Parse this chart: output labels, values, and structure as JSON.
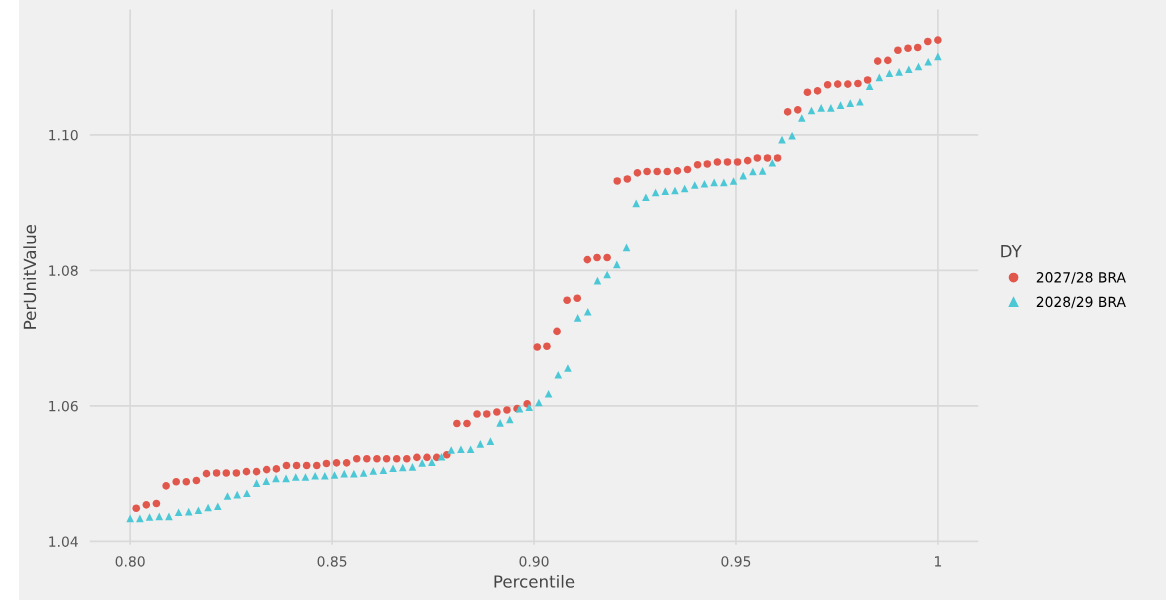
{
  "chart_data": {
    "type": "scatter",
    "xlabel": "Percentile",
    "ylabel": "PerUnitValue",
    "legend_title": "DY",
    "legend": "right",
    "grid": true,
    "xlim": [
      0.79,
      1.01
    ],
    "xticks": [
      {
        "value": 0.8,
        "label": "0.80"
      },
      0.85,
      {
        "value": 0.9,
        "label": "0.90"
      },
      0.95,
      1
    ],
    "ylim": [
      1.0395,
      1.1185
    ],
    "yticks": [
      {
        "value": 1.04,
        "label": "1.04"
      },
      {
        "value": 1.06,
        "label": "1.06"
      },
      {
        "value": 1.08,
        "label": "1.08"
      },
      {
        "value": 1.1,
        "label": "1.10"
      }
    ],
    "series": [
      {
        "name": "2027/28 BRA",
        "color": "#e2574c",
        "marker": "circle",
        "x": [
          0.8015,
          0.804,
          0.8065,
          0.8089,
          0.8114,
          0.8139,
          0.8164,
          0.8189,
          0.8214,
          0.8238,
          0.8263,
          0.8288,
          0.8313,
          0.8338,
          0.8362,
          0.8387,
          0.8412,
          0.8437,
          0.8462,
          0.8486,
          0.8511,
          0.8536,
          0.8561,
          0.8586,
          0.8611,
          0.8635,
          0.866,
          0.8685,
          0.871,
          0.8735,
          0.8759,
          0.8784,
          0.8809,
          0.8834,
          0.8859,
          0.8883,
          0.8908,
          0.8933,
          0.8958,
          0.8983,
          0.9008,
          0.9032,
          0.9057,
          0.9082,
          0.9107,
          0.9132,
          0.9156,
          0.9181,
          0.9206,
          0.9231,
          0.9256,
          0.928,
          0.9305,
          0.933,
          0.9355,
          0.938,
          0.9405,
          0.9429,
          0.9454,
          0.9479,
          0.9504,
          0.9529,
          0.9553,
          0.9578,
          0.9603,
          0.9628,
          0.9653,
          0.9677,
          0.9702,
          0.9727,
          0.9752,
          0.9777,
          0.9802,
          0.9826,
          0.9851,
          0.9876,
          0.9901,
          0.9926,
          0.995,
          0.9975,
          1.0
        ],
        "values": [
          1.0449,
          1.0454,
          1.0456,
          1.0482,
          1.0488,
          1.0488,
          1.049,
          1.05,
          1.0501,
          1.0501,
          1.0501,
          1.0503,
          1.0503,
          1.0506,
          1.0507,
          1.0512,
          1.0512,
          1.0512,
          1.0512,
          1.0515,
          1.0516,
          1.0516,
          1.0522,
          1.0522,
          1.0522,
          1.0522,
          1.0522,
          1.0522,
          1.0524,
          1.0524,
          1.0524,
          1.0528,
          1.0574,
          1.0574,
          1.0588,
          1.0588,
          1.0591,
          1.0594,
          1.0596,
          1.0603,
          1.0687,
          1.0688,
          1.071,
          1.0756,
          1.0759,
          1.0816,
          1.0819,
          1.0819,
          1.0932,
          1.0935,
          1.0944,
          1.0946,
          1.0946,
          1.0946,
          1.0947,
          1.0949,
          1.0956,
          1.0957,
          1.096,
          1.096,
          1.096,
          1.0962,
          1.0966,
          1.0966,
          1.0966,
          1.1034,
          1.1037,
          1.1063,
          1.1065,
          1.1074,
          1.1075,
          1.1075,
          1.1076,
          1.1081,
          1.1109,
          1.111,
          1.1125,
          1.1128,
          1.1129,
          1.1138,
          1.114
        ]
      },
      {
        "name": "2028/29 BRA",
        "color": "#4cc7d6",
        "marker": "triangle",
        "x": [
          0.8,
          0.8024,
          0.8048,
          0.8072,
          0.8096,
          0.812,
          0.8145,
          0.8169,
          0.8193,
          0.8217,
          0.8241,
          0.8265,
          0.8289,
          0.8313,
          0.8337,
          0.8361,
          0.8386,
          0.841,
          0.8434,
          0.8458,
          0.8482,
          0.8506,
          0.853,
          0.8554,
          0.8578,
          0.8602,
          0.8627,
          0.8651,
          0.8675,
          0.8699,
          0.8723,
          0.8747,
          0.8771,
          0.8795,
          0.8819,
          0.8843,
          0.8867,
          0.8892,
          0.8916,
          0.894,
          0.8964,
          0.8988,
          0.9012,
          0.9036,
          0.906,
          0.9084,
          0.9108,
          0.9133,
          0.9157,
          0.9181,
          0.9205,
          0.9229,
          0.9253,
          0.9277,
          0.9301,
          0.9325,
          0.9349,
          0.9373,
          0.9398,
          0.9422,
          0.9446,
          0.947,
          0.9494,
          0.9518,
          0.9542,
          0.9566,
          0.959,
          0.9614,
          0.9639,
          0.9663,
          0.9687,
          0.9711,
          0.9735,
          0.9759,
          0.9783,
          0.9807,
          0.9831,
          0.9855,
          0.988,
          0.9904,
          0.9928,
          0.9952,
          0.9976,
          1.0
        ],
        "values": [
          1.0434,
          1.0434,
          1.0436,
          1.0437,
          1.0437,
          1.0443,
          1.0444,
          1.0446,
          1.045,
          1.0452,
          1.0467,
          1.0469,
          1.0471,
          1.0486,
          1.0489,
          1.0493,
          1.0493,
          1.0495,
          1.0495,
          1.0497,
          1.0497,
          1.0498,
          1.05,
          1.05,
          1.0501,
          1.0504,
          1.0505,
          1.0508,
          1.0509,
          1.051,
          1.0516,
          1.0517,
          1.0525,
          1.0535,
          1.0536,
          1.0536,
          1.0544,
          1.0548,
          1.0575,
          1.058,
          1.0596,
          1.0598,
          1.0605,
          1.0618,
          1.0646,
          1.0656,
          1.073,
          1.0739,
          1.0785,
          1.0794,
          1.0809,
          1.0834,
          1.0899,
          1.0908,
          1.0915,
          1.0917,
          1.0918,
          1.0921,
          1.0926,
          1.0928,
          1.093,
          1.093,
          1.0932,
          1.094,
          1.0946,
          1.0947,
          1.0959,
          1.0993,
          1.0999,
          1.1025,
          1.1036,
          1.104,
          1.104,
          1.1044,
          1.1047,
          1.1049,
          1.1072,
          1.1085,
          1.1091,
          1.1093,
          1.1097,
          1.1101,
          1.1108,
          1.1116
        ]
      }
    ]
  }
}
